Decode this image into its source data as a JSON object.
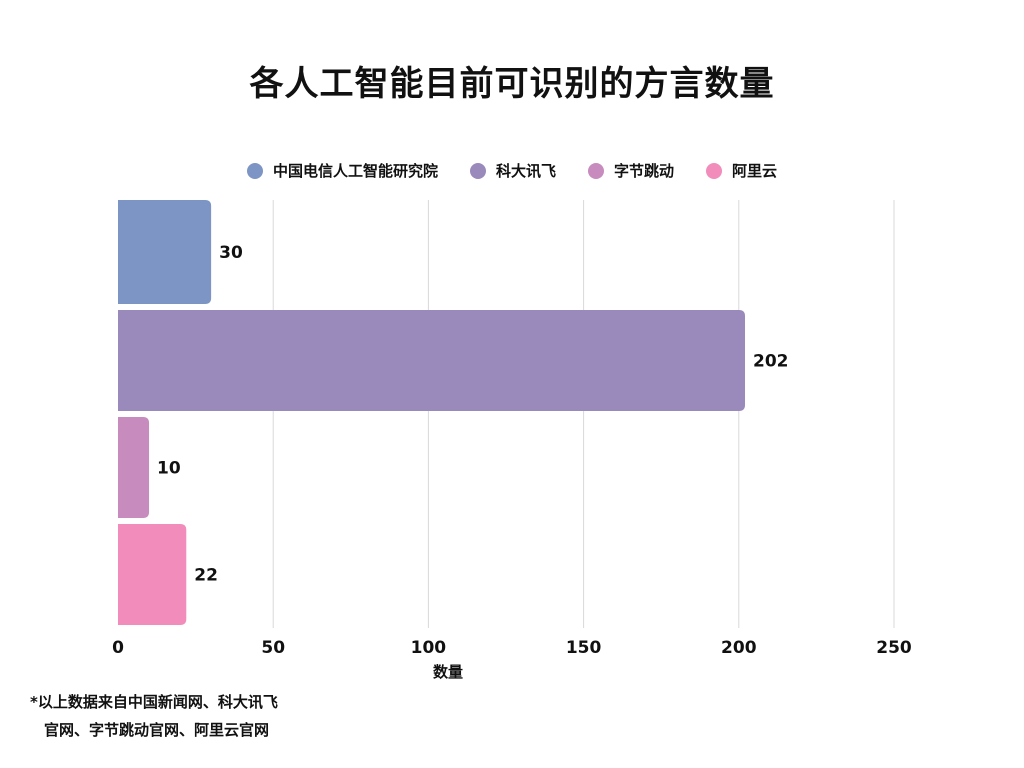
{
  "chart_data": {
    "type": "bar",
    "orientation": "horizontal",
    "title": "各人工智能目前可识别的方言数量",
    "categories": [
      "中国电信人工智能研究院",
      "科大讯飞",
      "字节跳动",
      "阿里云"
    ],
    "values": [
      30,
      202,
      10,
      22
    ],
    "colors": [
      "#7d95c4",
      "#9a89bb",
      "#c78bbd",
      "#f28cbb"
    ],
    "xlabel": "数量",
    "ylabel": "",
    "xlim": [
      0,
      250
    ],
    "xticks": [
      "0",
      "50",
      "100",
      "150",
      "200",
      "250"
    ],
    "grid": true,
    "legend_position": "top"
  },
  "footnote": {
    "line1": "*以上数据来自中国新闻网、科大讯飞",
    "line2": "官网、字节跳动官网、阿里云官网"
  }
}
